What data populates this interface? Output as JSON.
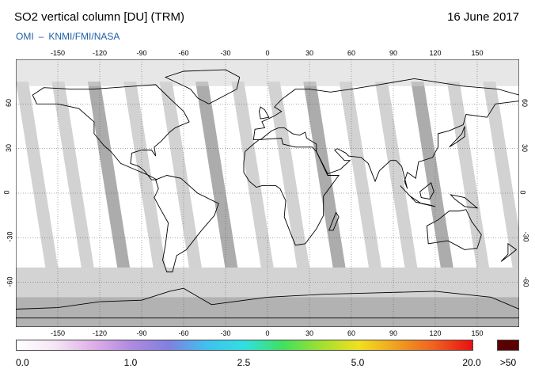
{
  "header": {
    "title": "SO2 vertical column [DU] (TRM)",
    "date": "16 June 2017",
    "credit_left": "OMI",
    "credit_sep": "–",
    "credit_right": "KNMI/FMI/NASA"
  },
  "map": {
    "projection": "equirectangular",
    "lon_range": [
      -180,
      180
    ],
    "lat_range": [
      -90,
      90
    ],
    "lon_ticks": [
      "-150",
      "-120",
      "-90",
      "-60",
      "-30",
      "0",
      "30",
      "60",
      "90",
      "120",
      "150"
    ],
    "lat_ticks": [
      "60",
      "30",
      "0",
      "-30",
      "-60"
    ],
    "grid": "dotted",
    "colors": {
      "land_fill": "#ffffff",
      "swath_light": "#d0d0d0",
      "swath_dark": "#a8a8a8",
      "polar_no_data": "#d3d3d3",
      "coastline": "#000000"
    }
  },
  "colorbar": {
    "labels": [
      "0.0",
      "1.0",
      "2.5",
      "5.0",
      "20.0",
      ">50"
    ],
    "stops": [
      "#ffffff",
      "#f5e6f5",
      "#e0b0e8",
      "#b08ae0",
      "#8080e0",
      "#40c0f0",
      "#30e0e0",
      "#40e060",
      "#a0e030",
      "#f0e020",
      "#f0a020",
      "#f06020",
      "#e81010"
    ],
    "overflow_color": "#5a0000"
  }
}
